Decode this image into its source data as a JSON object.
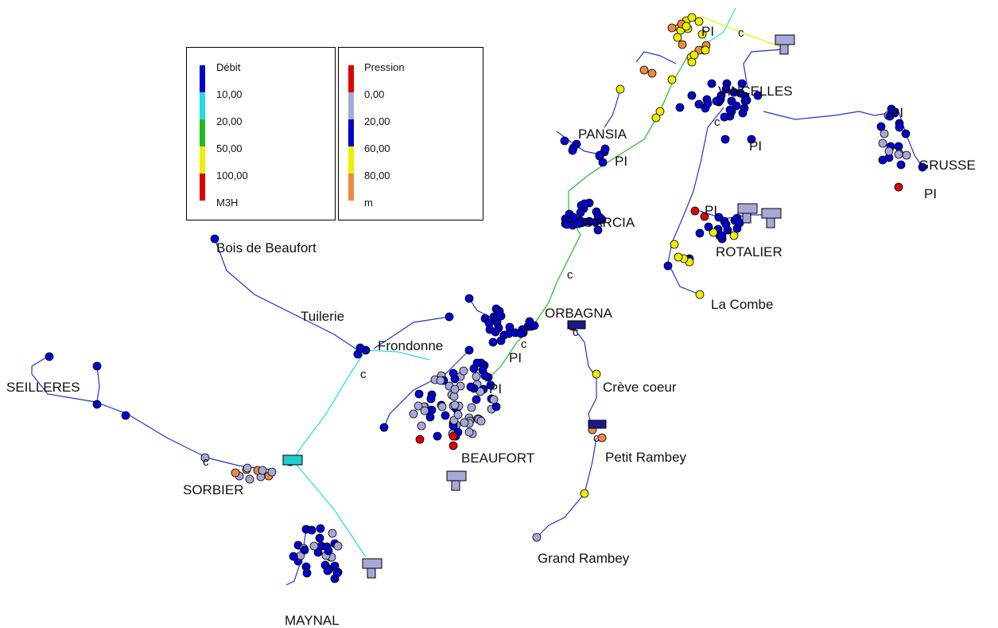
{
  "legend_flow": {
    "title": "Débit",
    "entries": [
      "10,00",
      "20,00",
      "50,00",
      "100,00",
      "M3H"
    ],
    "colors": [
      "#0000cc",
      "#22dddd",
      "#22bb22",
      "#eeee00",
      "#dd0000"
    ]
  },
  "legend_pressure": {
    "title": "Pression",
    "entries": [
      "0,00",
      "20,00",
      "60,00",
      "80,00",
      "m"
    ],
    "colors": [
      "#dd0000",
      "#a8a8d8",
      "#0000cc",
      "#eeee00",
      "#ee8844"
    ]
  },
  "places": [
    {
      "id": "vincelles",
      "label": "VINCELLES"
    },
    {
      "id": "pannessieres",
      "label": "PANSIA"
    },
    {
      "id": "grusse",
      "label": "GRUSSE"
    },
    {
      "id": "garcia",
      "label": "GARCIA"
    },
    {
      "id": "rotalier",
      "label": "ROTALIER"
    },
    {
      "id": "la-combe",
      "label": "La Combe"
    },
    {
      "id": "bois-de-beaufort",
      "label": "Bois de Beaufort"
    },
    {
      "id": "tuilerie",
      "label": "Tuilerie"
    },
    {
      "id": "orbagna",
      "label": "ORBAGNA"
    },
    {
      "id": "frondonne",
      "label": "Frondonne"
    },
    {
      "id": "creve-coeur",
      "label": "Crève coeur"
    },
    {
      "id": "seilleres",
      "label": "SEILLERES"
    },
    {
      "id": "beaufort",
      "label": "BEAUFORT"
    },
    {
      "id": "petit-rambey",
      "label": "Petit Rambey"
    },
    {
      "id": "sorbier",
      "label": "SORBIER"
    },
    {
      "id": "grand-rambey",
      "label": "Grand Rambey"
    },
    {
      "id": "maynal",
      "label": "MAYNAL"
    }
  ],
  "markers": [
    {
      "id": "pi-1",
      "label": "PI"
    },
    {
      "id": "c-1",
      "label": "c"
    },
    {
      "id": "pi-2",
      "label": "PI"
    },
    {
      "id": "c-2",
      "label": "c"
    },
    {
      "id": "pi-3",
      "label": "PI"
    },
    {
      "id": "pi-4",
      "label": "PI"
    },
    {
      "id": "pi-5",
      "label": "PI"
    },
    {
      "id": "c-3",
      "label": "c"
    },
    {
      "id": "pi-6",
      "label": "PI"
    },
    {
      "id": "c-4",
      "label": "c"
    },
    {
      "id": "pi-7",
      "label": "PI"
    },
    {
      "id": "pi-8",
      "label": "PI"
    },
    {
      "id": "c-5",
      "label": "c"
    },
    {
      "id": "c-6",
      "label": "c"
    },
    {
      "id": "c-7",
      "label": "c"
    },
    {
      "id": "c-8",
      "label": "c"
    }
  ]
}
